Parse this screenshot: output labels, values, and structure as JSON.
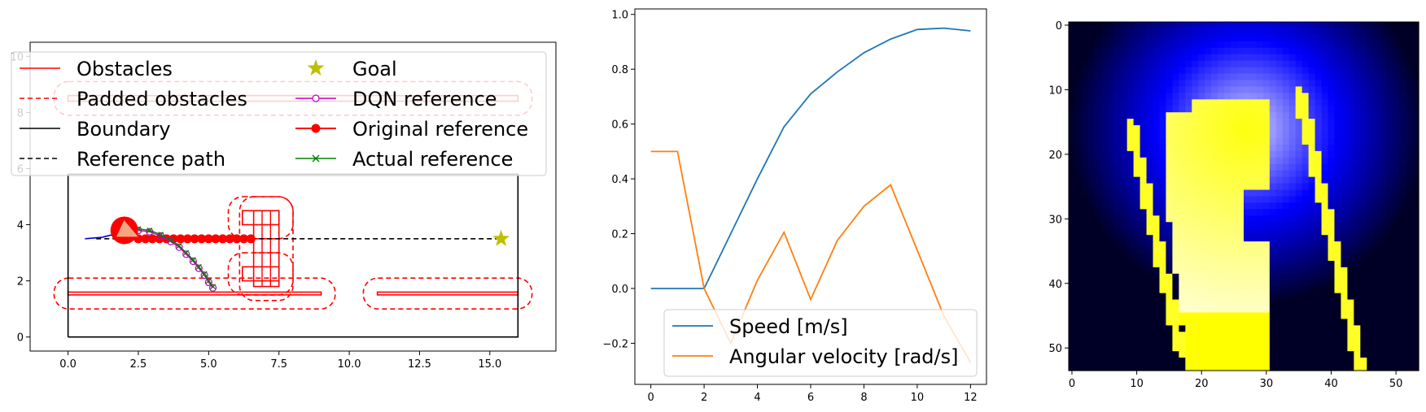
{
  "chart_data": [
    {
      "type": "line",
      "title": "",
      "xlabel": "",
      "ylabel": "",
      "xlim": [
        -1.35,
        17.35
      ],
      "ylim": [
        -0.5,
        10.5
      ],
      "xticks": [
        "0.0",
        "2.5",
        "5.0",
        "7.5",
        "10.0",
        "12.5",
        "15.0"
      ],
      "yticks": [
        "0",
        "2",
        "4",
        "6",
        "8",
        "10"
      ],
      "legend_placement": "upper-center",
      "legend": [
        {
          "label": "Obstacles",
          "color": "#ff0000",
          "style": "solid"
        },
        {
          "label": "Padded obstacles",
          "color": "#ff0000",
          "style": "dashed"
        },
        {
          "label": "Boundary",
          "color": "#000000",
          "style": "solid"
        },
        {
          "label": "Reference path",
          "color": "#000000",
          "style": "dashed"
        },
        {
          "label": "Goal",
          "color": "#bfbf00",
          "style": "star"
        },
        {
          "label": "DQN reference",
          "color": "#bf00bf",
          "style": "open-circle"
        },
        {
          "label": "Original reference",
          "color": "#ff0000",
          "style": "filled-circle"
        },
        {
          "label": "Actual reference",
          "color": "#008000",
          "style": "x"
        }
      ],
      "boundary": [
        [
          0,
          0
        ],
        [
          16,
          0
        ],
        [
          16,
          5.8
        ],
        [
          0,
          5.8
        ],
        [
          0,
          0
        ]
      ],
      "obstacles": [
        {
          "x0": 0,
          "x1": 9,
          "y0": 1.5,
          "y1": 1.6
        },
        {
          "x0": 11,
          "x1": 16,
          "y0": 1.5,
          "y1": 1.6
        },
        {
          "x0": 0,
          "x1": 16,
          "y0": 8.4,
          "y1": 8.6
        },
        {
          "x0": 6.2,
          "x1": 7.5,
          "y0": 2.0,
          "y1": 2.5
        },
        {
          "x0": 6.2,
          "x1": 7.5,
          "y0": 4.0,
          "y1": 4.5
        },
        {
          "x0": 6.6,
          "x1": 7.5,
          "y0": 1.8,
          "y1": 4.5
        }
      ],
      "padding": 0.5,
      "reference_path": [
        [
          1.0,
          3.5
        ],
        [
          15.4,
          3.5
        ]
      ],
      "goal": [
        15.4,
        3.5
      ],
      "robot": {
        "x": 2.0,
        "y": 3.8,
        "heading_deg": -25
      },
      "original_reference": [
        [
          2.5,
          3.5
        ],
        [
          2.75,
          3.5
        ],
        [
          3.0,
          3.5
        ],
        [
          3.25,
          3.5
        ],
        [
          3.5,
          3.5
        ],
        [
          3.75,
          3.5
        ],
        [
          4.0,
          3.5
        ],
        [
          4.25,
          3.5
        ],
        [
          4.5,
          3.5
        ],
        [
          4.75,
          3.5
        ],
        [
          5.0,
          3.5
        ],
        [
          5.25,
          3.5
        ],
        [
          5.5,
          3.5
        ],
        [
          5.75,
          3.5
        ],
        [
          6.0,
          3.5
        ],
        [
          6.25,
          3.5
        ],
        [
          6.5,
          3.5
        ]
      ],
      "dqn_reference": [
        [
          2.5,
          3.8
        ],
        [
          2.9,
          3.75
        ],
        [
          3.3,
          3.6
        ],
        [
          3.65,
          3.4
        ],
        [
          3.95,
          3.2
        ],
        [
          4.2,
          2.95
        ],
        [
          4.45,
          2.7
        ],
        [
          4.65,
          2.45
        ],
        [
          4.85,
          2.2
        ],
        [
          5.0,
          1.95
        ],
        [
          5.15,
          1.75
        ]
      ],
      "actual_reference": [
        [
          2.5,
          3.85
        ],
        [
          2.9,
          3.8
        ],
        [
          3.3,
          3.65
        ],
        [
          3.65,
          3.45
        ],
        [
          3.95,
          3.25
        ],
        [
          4.2,
          3.0
        ],
        [
          4.45,
          2.75
        ],
        [
          4.65,
          2.5
        ],
        [
          4.85,
          2.25
        ],
        [
          5.0,
          2.0
        ],
        [
          5.15,
          1.8
        ]
      ],
      "trajectory": [
        [
          0.6,
          3.5
        ],
        [
          1.2,
          3.55
        ],
        [
          1.8,
          3.7
        ],
        [
          2.0,
          3.8
        ]
      ]
    },
    {
      "type": "line",
      "title": "",
      "xlabel": "",
      "ylabel": "",
      "xlim": [
        -0.6,
        12.6
      ],
      "ylim": [
        -0.35,
        1.02
      ],
      "xticks": [
        "0",
        "2",
        "4",
        "6",
        "8",
        "10",
        "12"
      ],
      "yticks": [
        "−0.2",
        "0.0",
        "0.2",
        "0.4",
        "0.6",
        "0.8",
        "1.0"
      ],
      "legend_placement": "lower-center",
      "x": [
        0,
        1,
        2,
        3,
        4,
        5,
        6,
        7,
        8,
        9,
        10,
        11,
        12
      ],
      "series": [
        {
          "name": "Speed [m/s]",
          "color": "#1f77b4",
          "values": [
            0,
            0,
            0,
            0.2,
            0.4,
            0.59,
            0.71,
            0.79,
            0.86,
            0.91,
            0.945,
            0.95,
            0.94
          ]
        },
        {
          "name": "Angular velocity [rad/s]",
          "color": "#ff7f0e",
          "values": [
            0.5,
            0.5,
            0.0,
            -0.2,
            0.03,
            0.205,
            -0.04,
            0.175,
            0.3,
            0.378,
            0.14,
            -0.1,
            -0.27
          ]
        }
      ]
    },
    {
      "type": "heatmap",
      "title": "",
      "xticks": [
        "0",
        "10",
        "20",
        "30",
        "40",
        "50"
      ],
      "yticks": [
        "0",
        "10",
        "20",
        "30",
        "40",
        "50"
      ],
      "grid_size": [
        54,
        54
      ],
      "colormap": [
        "#000000",
        "#0000ff",
        "#ffffff",
        "#ffff00"
      ]
    }
  ]
}
